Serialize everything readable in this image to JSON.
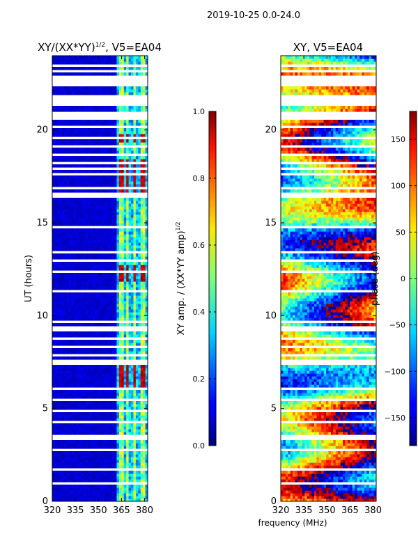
{
  "suptitle": "2019-10-25 0.0-24.0",
  "xlabel_shared": "frequency (MHz)",
  "chart_data": [
    {
      "type": "heatmap",
      "title_prefix": "XY/(XX*YY)",
      "title_exp": "1/2",
      "title_suffix": ", V5=EA04",
      "ylabel": "UT (hours)",
      "xlim": [
        320,
        382
      ],
      "ylim": [
        0,
        24
      ],
      "xticks": [
        320,
        335,
        350,
        365,
        380
      ],
      "yticks": [
        0,
        5,
        10,
        15,
        20
      ],
      "colorbar": {
        "label_prefix": "XY amp. / (XX*YY amp)",
        "label_exp": "1/2",
        "range": [
          0.0,
          1.0
        ],
        "ticks": [
          "0.0",
          "0.2",
          "0.4",
          "0.6",
          "0.8",
          "1.0"
        ],
        "tick_values": [
          0.0,
          0.2,
          0.4,
          0.6,
          0.8,
          1.0
        ]
      },
      "background_value": 0.05,
      "bright_channels_mhz": [
        [
          363,
          366
        ],
        [
          368,
          370
        ],
        [
          373,
          375
        ],
        [
          378,
          380
        ]
      ],
      "bright_channel_value": 0.4,
      "high_value_hour_ranges": [
        [
          6.0,
          7.4
        ],
        [
          11.8,
          12.8
        ],
        [
          16.3,
          18.5
        ],
        [
          19.3,
          19.8
        ]
      ],
      "high_value": 0.88
    },
    {
      "type": "heatmap",
      "title": "XY, V5=EA04",
      "xlim": [
        320,
        382
      ],
      "ylim": [
        0,
        24
      ],
      "xticks": [
        320,
        335,
        350,
        365,
        380
      ],
      "yticks": [
        0,
        5,
        10,
        15,
        20
      ],
      "colorbar": {
        "label": "phase (deg)",
        "range": [
          -180,
          180
        ],
        "ticks": [
          "−150",
          "−100",
          "−50",
          "0",
          "50",
          "100",
          "150"
        ],
        "tick_values": [
          -150,
          -100,
          -50,
          0,
          50,
          100,
          150
        ]
      },
      "phase_slope_deg_per_mhz": 4.5
    }
  ],
  "flagged_hours": [
    [
      0.9,
      1.0
    ],
    [
      1.3,
      1.4
    ],
    [
      1.65,
      1.75
    ],
    [
      2.2,
      2.3
    ],
    [
      2.7,
      2.8
    ],
    [
      3.25,
      3.55
    ],
    [
      4.2,
      4.3
    ],
    [
      4.8,
      4.9
    ],
    [
      5.4,
      5.5
    ],
    [
      6.05,
      6.15
    ],
    [
      7.4,
      7.7
    ],
    [
      7.85,
      7.95
    ],
    [
      8.3,
      8.4
    ],
    [
      8.7,
      8.85
    ],
    [
      9.2,
      9.5
    ],
    [
      9.6,
      9.7
    ],
    [
      10.15,
      10.25
    ],
    [
      10.75,
      10.85
    ],
    [
      11.2,
      11.45
    ],
    [
      11.8,
      11.9
    ],
    [
      12.3,
      12.5
    ],
    [
      12.95,
      13.1
    ],
    [
      13.35,
      13.5
    ],
    [
      14.7,
      14.9
    ],
    [
      15.1,
      15.2
    ],
    [
      16.4,
      16.6
    ],
    [
      16.8,
      16.9
    ],
    [
      17.2,
      17.3
    ],
    [
      17.55,
      17.65
    ],
    [
      17.85,
      17.95
    ],
    [
      18.2,
      18.3
    ],
    [
      18.6,
      18.7
    ],
    [
      19.05,
      19.15
    ],
    [
      19.5,
      19.6
    ],
    [
      20.05,
      20.25
    ],
    [
      20.6,
      21.0
    ],
    [
      21.3,
      21.9
    ],
    [
      22.3,
      22.95
    ],
    [
      23.1,
      23.2
    ],
    [
      23.45,
      23.55
    ]
  ]
}
